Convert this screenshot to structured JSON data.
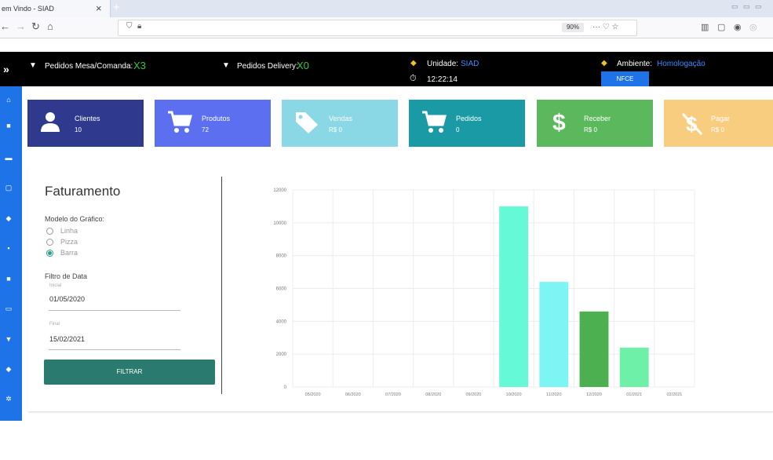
{
  "browser": {
    "tab_title": "em Vindo - SIAD",
    "tab_close": "×",
    "new_tab": "+",
    "zoom": "90%",
    "url_actions": "··· ♡ ☆",
    "window_controls": "▭ ▭ ▭"
  },
  "header": {
    "mesa_label": "Pedidos Mesa/Comanda:",
    "mesa_count": "X3",
    "delivery_label": "Pedidos Delivery:",
    "delivery_count": "X0",
    "unidade_label": "Unidade:",
    "unidade_value": "SIAD",
    "time": "12:22:14",
    "ambiente_label": "Ambiente:",
    "ambiente_value": "Homologação",
    "nfce_button": "NFCE"
  },
  "cards": [
    {
      "label": "Clientes",
      "value": "10",
      "color": "#2f3a8f"
    },
    {
      "label": "Produtos",
      "value": "72",
      "color": "#5b6ff0"
    },
    {
      "label": "Vendas",
      "value": "R$ 0",
      "color": "#8ad7e6"
    },
    {
      "label": "Pedidos",
      "value": "0",
      "color": "#1a9aa4"
    },
    {
      "label": "Receber",
      "value": "R$ 0",
      "color": "#5cb85c"
    },
    {
      "label": "Pagar",
      "value": "R$ 0",
      "color": "#f9cd80"
    }
  ],
  "panel": {
    "title": "Faturamento",
    "chart_model_label": "Modelo do Gráfico:",
    "options": [
      "Linha",
      "Pizza",
      "Barra"
    ],
    "date_filter_label": "Filtro de Data",
    "initial_label": "Inicial",
    "initial_value": "01/05/2020",
    "final_label": "Final",
    "final_value": "15/02/2021",
    "filter_button": "FILTRAR"
  },
  "chart_data": {
    "type": "bar",
    "categories": [
      "05/2020",
      "06/2020",
      "07/2020",
      "08/2020",
      "09/2020",
      "10/2020",
      "11/2020",
      "12/2020",
      "01/2021",
      "02/2021"
    ],
    "values": [
      0,
      0,
      0,
      0,
      0,
      11000,
      6400,
      4600,
      2400,
      0
    ],
    "bar_colors": [
      "#66f0d0",
      "#66f0d0",
      "#66f0d0",
      "#66f0d0",
      "#66f0d0",
      "#66f9d8",
      "#7df5f5",
      "#4caf50",
      "#6ef0a8",
      "#66f0d0"
    ],
    "yticks": [
      0,
      2000,
      4000,
      6000,
      8000,
      10000,
      12000
    ],
    "ylim": [
      0,
      12000
    ],
    "title": "",
    "xlabel": "",
    "ylabel": "",
    "grid": true
  }
}
